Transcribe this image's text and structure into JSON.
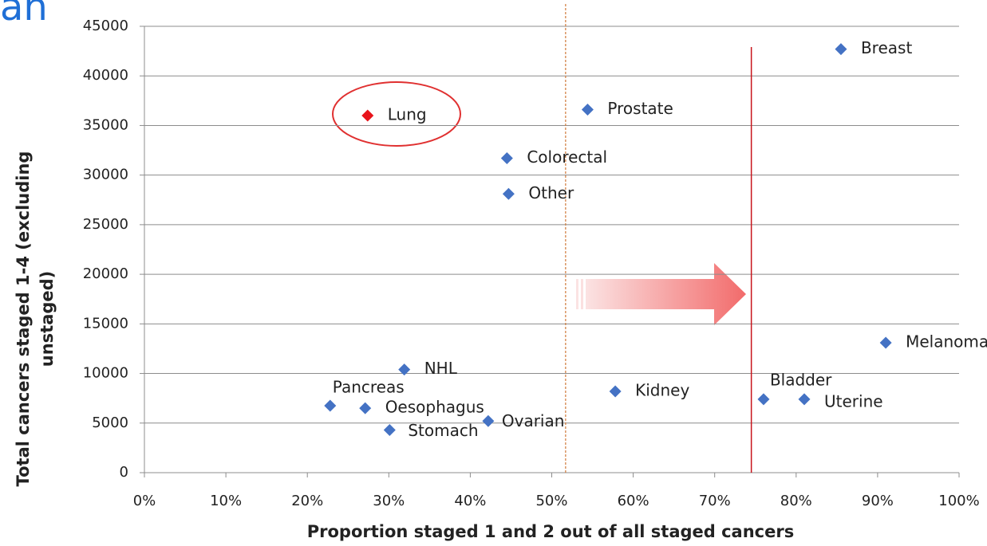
{
  "chart_data": {
    "type": "scatter",
    "title": "an",
    "xlabel": "Proportion staged 1 and 2 out of all staged cancers",
    "ylabel": [
      "Total cancers staged 1-4 (excluding",
      "unstaged)"
    ],
    "labels": [
      "Breast",
      "Prostate",
      "Lung",
      "Colorectal",
      "Other",
      "Melanoma",
      "NHL",
      "Kidney",
      "Bladder",
      "Uterine",
      "Pancreas",
      "Oesophagus",
      "Ovarian",
      "Stomach"
    ],
    "x": [
      85.5,
      54.4,
      27.4,
      44.5,
      44.7,
      91.0,
      31.9,
      57.8,
      76.0,
      81.0,
      22.8,
      27.1,
      42.2,
      30.1
    ],
    "values": [
      42700,
      36600,
      36000,
      31700,
      28100,
      13100,
      10400,
      8200,
      7400,
      7400,
      6750,
      6500,
      5200,
      4300
    ],
    "colors": [
      "#4472c4",
      "#4472c4",
      "#e8141b",
      "#4472c4",
      "#4472c4",
      "#4472c4",
      "#4472c4",
      "#4472c4",
      "#4472c4",
      "#4472c4",
      "#4472c4",
      "#4472c4",
      "#4472c4",
      "#4472c4"
    ],
    "xlim": [
      0,
      100
    ],
    "xticks": [
      {
        "value": 0,
        "label": "0%"
      },
      {
        "value": 10,
        "label": "10%"
      },
      {
        "value": 20,
        "label": "20%"
      },
      {
        "value": 30,
        "label": "30%"
      },
      {
        "value": 40,
        "label": "40%"
      },
      {
        "value": 50,
        "label": "50%"
      },
      {
        "value": 60,
        "label": "60%"
      },
      {
        "value": 70,
        "label": "70%"
      },
      {
        "value": 80,
        "label": "80%"
      },
      {
        "value": 90,
        "label": "90%"
      },
      {
        "value": 100,
        "label": "100%"
      }
    ],
    "ylim": [
      0,
      45000
    ],
    "yticks": [
      0,
      5000,
      10000,
      15000,
      20000,
      25000,
      30000,
      35000,
      40000,
      45000
    ],
    "grid": true,
    "vlines": [
      {
        "x": 51.7,
        "color": "#d07a3a",
        "dashed": true
      },
      {
        "x": 74.5,
        "color": "#c8141b",
        "dashed": false
      }
    ]
  }
}
